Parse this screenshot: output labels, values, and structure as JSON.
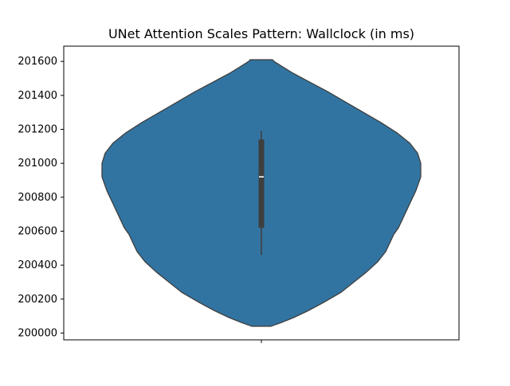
{
  "chart_data": {
    "type": "violin",
    "title": "UNet Attention Scales Pattern: Wallclock (in ms)",
    "xlabel": "",
    "ylabel": "",
    "ylim": [
      199960,
      201690
    ],
    "yticks": [
      200000,
      200200,
      200400,
      200600,
      200800,
      201000,
      201200,
      201400,
      201600
    ],
    "grid": false,
    "legend": "none",
    "violin": {
      "color": "#3274a1",
      "edge_color": "#3f3f3f",
      "min": 200040,
      "max": 201610,
      "median": 200920,
      "q1": 200620,
      "q3": 201140,
      "whisker_low": 200460,
      "whisker_high": 201190,
      "density": [
        [
          200040,
          0.06
        ],
        [
          200060,
          0.12
        ],
        [
          200090,
          0.2
        ],
        [
          200130,
          0.29
        ],
        [
          200180,
          0.39
        ],
        [
          200240,
          0.5
        ],
        [
          200300,
          0.58
        ],
        [
          200360,
          0.66
        ],
        [
          200420,
          0.73
        ],
        [
          200480,
          0.78
        ],
        [
          200540,
          0.81
        ],
        [
          200580,
          0.83
        ],
        [
          200620,
          0.86
        ],
        [
          200680,
          0.89
        ],
        [
          200760,
          0.93
        ],
        [
          200840,
          0.97
        ],
        [
          200920,
          1.0
        ],
        [
          201000,
          1.0
        ],
        [
          201060,
          0.98
        ],
        [
          201120,
          0.93
        ],
        [
          201180,
          0.85
        ],
        [
          201240,
          0.75
        ],
        [
          201300,
          0.64
        ],
        [
          201360,
          0.53
        ],
        [
          201420,
          0.42
        ],
        [
          201480,
          0.3
        ],
        [
          201530,
          0.2
        ],
        [
          201570,
          0.13
        ],
        [
          201600,
          0.08
        ],
        [
          201610,
          0.07
        ]
      ]
    }
  }
}
